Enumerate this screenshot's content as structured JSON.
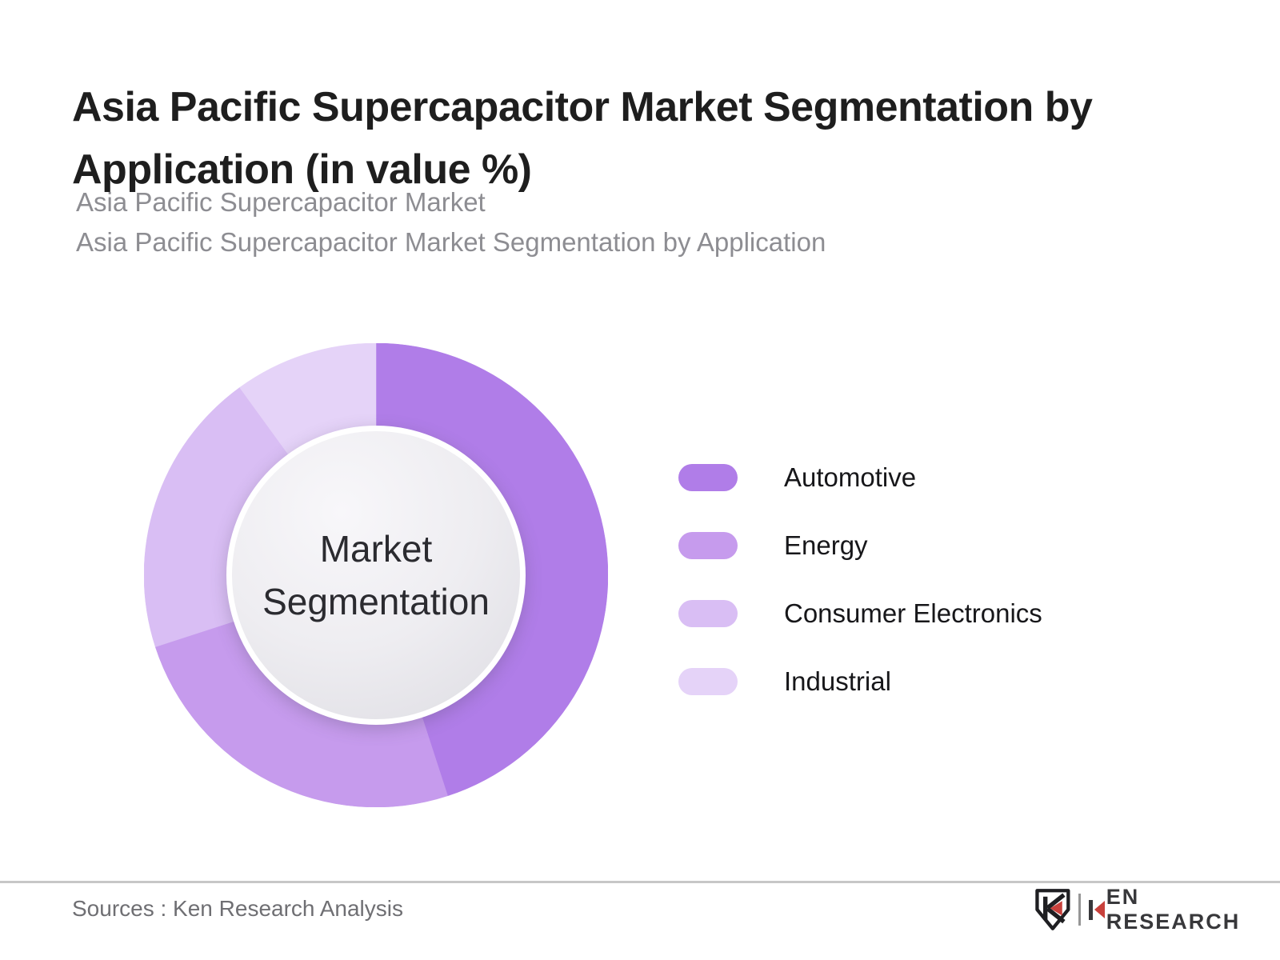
{
  "header": {
    "title_lines": [
      "Asia Pacific Supercapacitor Market Segmentation by",
      "Application (in value %)"
    ],
    "subtitle_lines": [
      "Asia Pacific Supercapacitor Market",
      "Asia Pacific Supercapacitor Market Segmentation by Application"
    ]
  },
  "chart_data": {
    "type": "pie",
    "style": "donut",
    "title": "Asia Pacific Supercapacitor Market Segmentation by Application (in value %)",
    "center_label_lines": [
      "Market",
      "Segmentation"
    ],
    "categories": [
      "Automotive",
      "Energy",
      "Consumer Electronics",
      "Industrial"
    ],
    "values": [
      45,
      25,
      20,
      10
    ],
    "values_unit": "percent (estimated from segment angles; no numeric labels shown)",
    "colors": [
      "#b07de8",
      "#c69bed",
      "#d9bef4",
      "#e5d3f8"
    ],
    "start_angle_deg": 0,
    "direction": "clockwise",
    "legend_position": "right"
  },
  "footer": {
    "source_text": "Sources : Ken Research Analysis",
    "brand": {
      "name": "KEN RESEARCH",
      "accent_color": "#c8413c",
      "text_color": "#38383b"
    }
  }
}
